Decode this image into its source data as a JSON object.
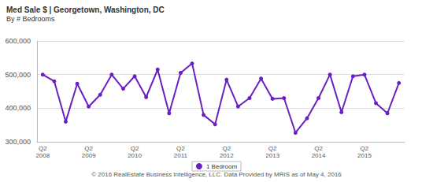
{
  "chart_data": {
    "type": "line",
    "title": "Med Sale $ | Georgetown, Washington, DC",
    "subtitle": "By # Bedrooms",
    "footer": "© 2016 RealEstate Business Intelligence, LLC. Data Provided by MRIS as of May 4, 2016",
    "categories": [
      "Q2\n2008",
      null,
      null,
      null,
      "Q2\n2009",
      null,
      null,
      null,
      "Q2\n2010",
      null,
      null,
      null,
      "Q2\n2011",
      null,
      null,
      null,
      "Q2\n2012",
      null,
      null,
      null,
      "Q2\n2013",
      null,
      null,
      null,
      "Q2\n2014",
      null,
      null,
      null,
      "Q2\n2015",
      null,
      null,
      null
    ],
    "series": [
      {
        "name": "1 Bedroom",
        "color": "#6a1fc2",
        "marker": "circle",
        "values": [
          500000,
          480000,
          360000,
          473000,
          405000,
          440000,
          500000,
          458000,
          495000,
          433000,
          515000,
          385000,
          505000,
          533000,
          380000,
          352000,
          485000,
          405000,
          430000,
          488000,
          428000,
          430000,
          327000,
          370000,
          430000,
          500000,
          388000,
          495000,
          500000,
          415000,
          385000,
          475000
        ]
      }
    ],
    "ylim": [
      300000,
      600000
    ],
    "yticks": [
      {
        "value": 300000,
        "label": "300,000"
      },
      {
        "value": 400000,
        "label": "400,000"
      },
      {
        "value": 500000,
        "label": "500,000"
      },
      {
        "value": 600000,
        "label": "600,000"
      }
    ],
    "grid": true,
    "legend": "bottom"
  }
}
